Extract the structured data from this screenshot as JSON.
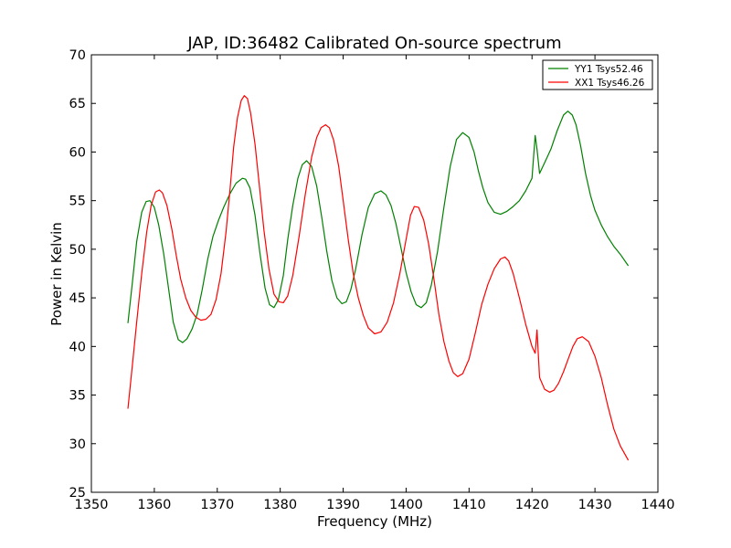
{
  "chart_data": {
    "type": "line",
    "title": "JAP, ID:36482 Calibrated On-source spectrum",
    "xlabel": "Frequency (MHz)",
    "ylabel": "Power in Kelvin",
    "xlim": [
      1350,
      1440
    ],
    "ylim": [
      25,
      70
    ],
    "xticks": [
      1350,
      1360,
      1370,
      1380,
      1390,
      1400,
      1410,
      1420,
      1430,
      1440
    ],
    "yticks": [
      25,
      30,
      35,
      40,
      45,
      50,
      55,
      60,
      65,
      70
    ],
    "grid": false,
    "legend_position": "top-right",
    "series": [
      {
        "name": "YY1 Tsys52.46",
        "color": "#008000",
        "x": [
          1355.8,
          1356.5,
          1357.2,
          1358.0,
          1358.7,
          1359.3,
          1360.0,
          1360.7,
          1361.5,
          1362.3,
          1363.0,
          1363.8,
          1364.5,
          1365.2,
          1366.0,
          1366.8,
          1367.6,
          1368.5,
          1369.3,
          1370.2,
          1371.0,
          1372.0,
          1373.0,
          1374.0,
          1374.5,
          1375.2,
          1376.0,
          1376.8,
          1377.6,
          1378.3,
          1379.0,
          1379.7,
          1380.5,
          1381.2,
          1382.0,
          1382.8,
          1383.5,
          1384.2,
          1385.0,
          1385.8,
          1386.6,
          1387.4,
          1388.2,
          1389.0,
          1389.8,
          1390.5,
          1391.2,
          1392.0,
          1393.0,
          1394.0,
          1395.0,
          1396.0,
          1396.8,
          1397.6,
          1398.4,
          1399.2,
          1400.0,
          1400.8,
          1401.6,
          1402.4,
          1403.2,
          1404.0,
          1405.0,
          1406.0,
          1407.0,
          1408.0,
          1409.0,
          1410.0,
          1410.8,
          1411.5,
          1412.2,
          1413.0,
          1414.0,
          1415.0,
          1416.0,
          1417.0,
          1418.0,
          1419.0,
          1420.0,
          1420.5,
          1420.8,
          1421.2,
          1422.0,
          1423.0,
          1424.0,
          1425.0,
          1425.7,
          1426.4,
          1427.0,
          1427.7,
          1428.5,
          1429.3,
          1430.0,
          1431.0,
          1432.0,
          1433.0,
          1434.0,
          1435.3
        ],
        "y": [
          42.4,
          46.5,
          50.8,
          53.8,
          54.9,
          55.0,
          54.3,
          52.5,
          49.5,
          45.8,
          42.5,
          40.7,
          40.4,
          40.8,
          41.8,
          43.3,
          45.8,
          49.0,
          51.3,
          53.0,
          54.3,
          55.7,
          56.8,
          57.3,
          57.2,
          56.3,
          53.5,
          49.5,
          46.0,
          44.3,
          44.0,
          44.8,
          47.3,
          51.0,
          54.5,
          57.3,
          58.7,
          59.1,
          58.5,
          56.5,
          53.3,
          49.8,
          46.8,
          45.0,
          44.4,
          44.6,
          45.8,
          48.0,
          51.5,
          54.3,
          55.7,
          56.0,
          55.6,
          54.5,
          52.6,
          50.1,
          47.6,
          45.6,
          44.3,
          44.0,
          44.5,
          46.3,
          49.8,
          54.3,
          58.5,
          61.3,
          62.0,
          61.5,
          60.0,
          58.0,
          56.3,
          54.8,
          53.8,
          53.6,
          53.9,
          54.4,
          55.0,
          56.0,
          57.3,
          61.7,
          60.3,
          57.8,
          58.9,
          60.3,
          62.2,
          63.8,
          64.2,
          63.8,
          62.8,
          60.7,
          57.8,
          55.5,
          54.0,
          52.5,
          51.3,
          50.3,
          49.5,
          48.3
        ]
      },
      {
        "name": "XX1 Tsys46.26",
        "color": "#ff0000",
        "x": [
          1355.8,
          1356.5,
          1357.2,
          1358.0,
          1358.8,
          1359.5,
          1360.2,
          1360.8,
          1361.3,
          1362.0,
          1362.8,
          1363.5,
          1364.2,
          1365.0,
          1365.8,
          1366.6,
          1367.4,
          1368.2,
          1369.0,
          1369.8,
          1370.6,
          1371.4,
          1372.0,
          1372.6,
          1373.2,
          1373.8,
          1374.3,
          1374.8,
          1375.3,
          1376.0,
          1376.7,
          1377.4,
          1378.2,
          1379.0,
          1379.8,
          1380.5,
          1381.2,
          1382.0,
          1383.0,
          1384.0,
          1385.0,
          1385.8,
          1386.5,
          1387.2,
          1387.8,
          1388.5,
          1389.3,
          1390.0,
          1390.8,
          1391.6,
          1392.4,
          1393.2,
          1394.0,
          1395.0,
          1396.0,
          1397.0,
          1398.0,
          1399.0,
          1400.0,
          1400.7,
          1401.3,
          1402.0,
          1402.8,
          1403.6,
          1404.4,
          1405.2,
          1406.0,
          1406.8,
          1407.5,
          1408.2,
          1409.0,
          1410.0,
          1411.0,
          1412.0,
          1413.0,
          1414.0,
          1415.0,
          1415.7,
          1416.3,
          1417.0,
          1418.0,
          1419.0,
          1420.0,
          1420.5,
          1420.8,
          1421.2,
          1422.0,
          1422.8,
          1423.5,
          1424.2,
          1425.0,
          1425.8,
          1426.5,
          1427.2,
          1428.0,
          1429.0,
          1430.0,
          1431.0,
          1432.0,
          1433.0,
          1434.0,
          1435.3
        ],
        "y": [
          33.6,
          38.0,
          42.5,
          47.5,
          51.8,
          54.5,
          55.9,
          56.1,
          55.8,
          54.5,
          52.0,
          49.3,
          46.9,
          45.0,
          43.7,
          43.0,
          42.7,
          42.8,
          43.3,
          44.8,
          47.5,
          51.8,
          56.0,
          60.5,
          63.5,
          65.3,
          65.8,
          65.5,
          64.0,
          60.8,
          56.5,
          52.0,
          48.0,
          45.4,
          44.6,
          44.5,
          45.2,
          47.3,
          51.3,
          55.7,
          59.5,
          61.5,
          62.5,
          62.8,
          62.5,
          61.2,
          58.5,
          55.0,
          51.0,
          47.5,
          45.0,
          43.2,
          41.9,
          41.3,
          41.5,
          42.5,
          44.5,
          47.5,
          51.0,
          53.5,
          54.4,
          54.3,
          53.0,
          50.5,
          47.0,
          43.3,
          40.5,
          38.5,
          37.3,
          36.9,
          37.2,
          38.7,
          41.4,
          44.3,
          46.4,
          48.0,
          49.0,
          49.2,
          48.8,
          47.5,
          45.0,
          42.3,
          40.0,
          39.3,
          41.7,
          36.8,
          35.6,
          35.3,
          35.5,
          36.2,
          37.4,
          38.8,
          40.0,
          40.8,
          41.0,
          40.5,
          39.0,
          36.8,
          34.0,
          31.5,
          29.8,
          28.3
        ]
      }
    ]
  }
}
